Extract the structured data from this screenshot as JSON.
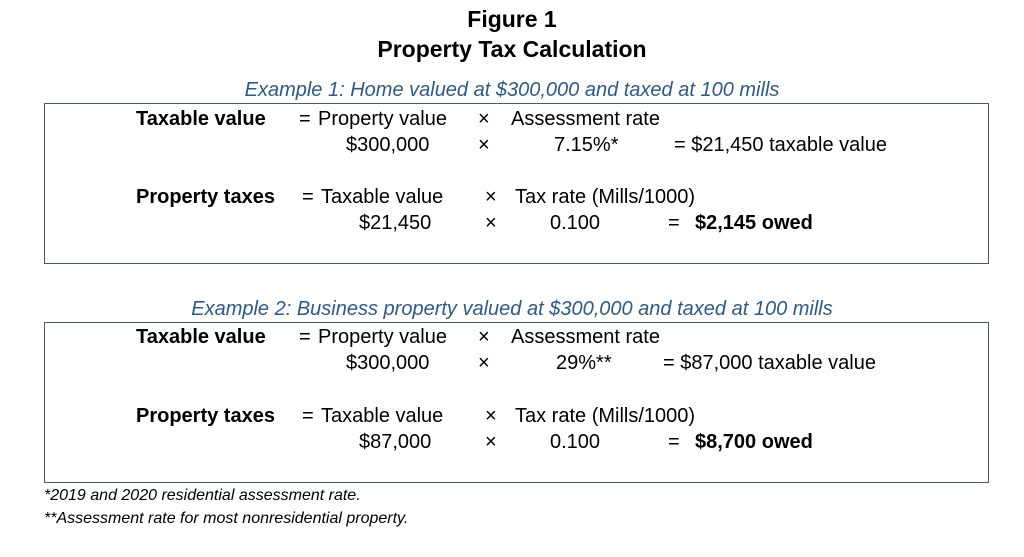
{
  "figure": {
    "label": "Figure 1",
    "title": "Property Tax Calculation"
  },
  "examples": [
    {
      "title": "Example 1: Home valued at $300,000 and taxed at 100 mills",
      "taxable": {
        "label": "Taxable value",
        "eq": "=",
        "term1": "Property value",
        "op": "×",
        "term2": "Assessment rate",
        "value1": "$300,000",
        "value2": "7.15%*",
        "result": "= $21,450 taxable value"
      },
      "taxes": {
        "label": "Property taxes",
        "eq": "=",
        "term1": "Taxable value",
        "op": "×",
        "term2": "Tax rate (Mills/1000)",
        "value1": "$21,450",
        "value2": "0.100",
        "result_eq": "=",
        "result": "$2,145 owed"
      }
    },
    {
      "title": "Example 2: Business property valued at $300,000 and taxed at 100 mills",
      "taxable": {
        "label": "Taxable value",
        "eq": "=",
        "term1": "Property value",
        "op": "×",
        "term2": "Assessment rate",
        "value1": "$300,000",
        "value2": "29%**",
        "result": "= $87,000 taxable value"
      },
      "taxes": {
        "label": "Property taxes",
        "eq": "=",
        "term1": "Taxable value",
        "op": "×",
        "term2": "Tax rate (Mills/1000)",
        "value1": "$87,000",
        "value2": "0.100",
        "result_eq": "=",
        "result": "$8,700 owed"
      }
    }
  ],
  "footnotes": [
    "*2019 and 2020 residential assessment rate.",
    "**Assessment rate for most nonresidential property."
  ]
}
